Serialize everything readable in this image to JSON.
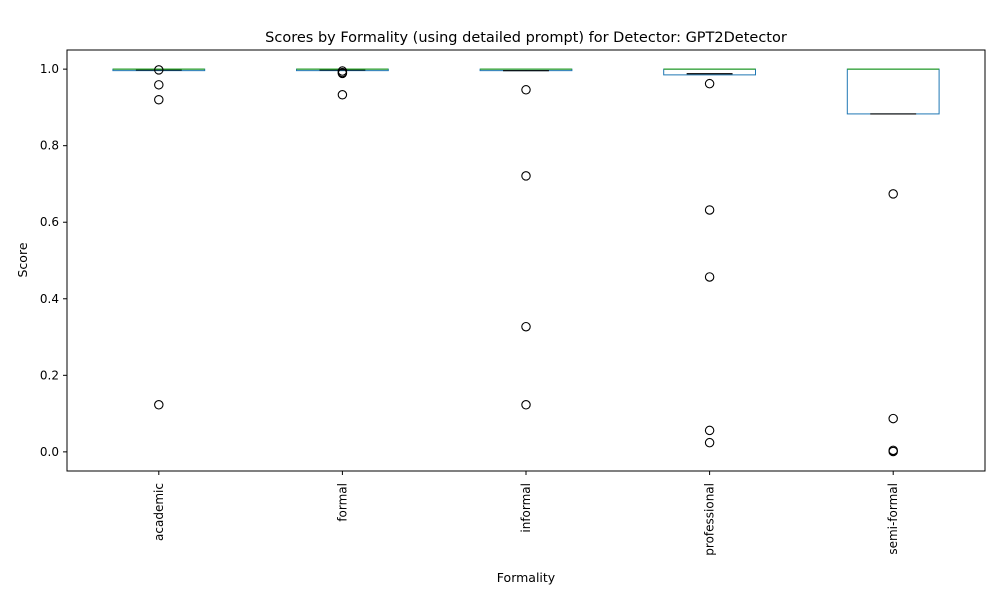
{
  "chart_data": {
    "type": "box",
    "title": "Scores by Formality (using detailed prompt) for Detector: GPT2Detector",
    "xlabel": "Formality",
    "ylabel": "Score",
    "ylim": [
      -0.05,
      1.05
    ],
    "yticks": [
      "0.0",
      "0.2",
      "0.4",
      "0.6",
      "0.8",
      "1.0"
    ],
    "grid": false,
    "categories": [
      "academic",
      "formal",
      "informal",
      "professional",
      "semi-formal"
    ],
    "boxes": [
      {
        "category": "academic",
        "whisker_low": 0.998,
        "q1": 0.9985,
        "median": 1.0,
        "mean": 0.998,
        "q3": 1.0,
        "whisker_high": 1.0,
        "outliers": [
          0.998,
          0.959,
          0.92,
          0.123
        ]
      },
      {
        "category": "formal",
        "whisker_low": 0.997,
        "q1": 0.997,
        "median": 1.0,
        "mean": 0.998,
        "q3": 1.0,
        "whisker_high": 1.0,
        "outliers": [
          0.995,
          0.991,
          0.989,
          0.933
        ]
      },
      {
        "category": "informal",
        "whisker_low": 0.996,
        "q1": 0.997,
        "median": 1.0,
        "mean": 0.996,
        "q3": 1.0,
        "whisker_high": 1.0,
        "outliers": [
          0.946,
          0.721,
          0.327,
          0.123
        ]
      },
      {
        "category": "professional",
        "whisker_low": 0.985,
        "q1": 0.985,
        "median": 1.0,
        "mean": 0.988,
        "q3": 1.0,
        "whisker_high": 1.0,
        "outliers": [
          0.962,
          0.632,
          0.457,
          0.056,
          0.024
        ]
      },
      {
        "category": "semi-formal",
        "whisker_low": 0.883,
        "q1": 0.883,
        "median": 1.0,
        "mean": 0.883,
        "q3": 1.0,
        "whisker_high": 1.0,
        "outliers": [
          0.674,
          0.087,
          0.004,
          0.001
        ]
      }
    ],
    "colors": {
      "box": "#1f77b4",
      "median": "#2ca02c",
      "mean_line": "#000000",
      "outlier": "#000000"
    }
  }
}
